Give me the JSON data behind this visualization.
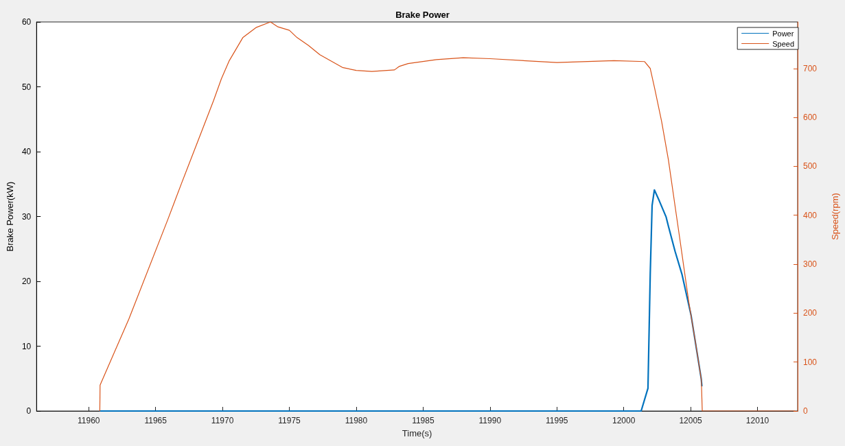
{
  "chart_data": {
    "type": "line",
    "title": "Brake Power",
    "xlabel": "Time(s)",
    "ylabel": "Brake Power(kW)",
    "y2label": "Speed(rpm)",
    "xlim": [
      11956.1,
      12013
    ],
    "xticks": [
      11960,
      11965,
      11970,
      11975,
      11980,
      11985,
      11990,
      11995,
      12000,
      12005,
      12010
    ],
    "ylim": [
      0,
      60
    ],
    "yticks": [
      0,
      10,
      20,
      30,
      40,
      50,
      60
    ],
    "y2lim": [
      0,
      795
    ],
    "y2ticks": [
      0,
      100,
      200,
      300,
      400,
      500,
      600,
      700
    ],
    "legend": "top right",
    "marker": "none",
    "series": [
      {
        "name": "Power",
        "color": "#0072bd",
        "x": [
          11960.85,
          12001.3,
          12001.81,
          12001.98,
          12002.12,
          12002.29,
          12002.66,
          12003.17,
          12003.34,
          12003.84,
          12004.35,
          12005.03,
          12005.79,
          12005.84
        ],
        "values": [
          0,
          0,
          3.5,
          21.1,
          31.7,
          34.1,
          32.4,
          29.9,
          28.5,
          24.6,
          21.1,
          14.8,
          5.0,
          3.9
        ]
      },
      {
        "name": "Speed",
        "color": "#d95319",
        "axis": "y2",
        "x": [
          11960.83,
          11960.85,
          11963.0,
          11965.91,
          11966.95,
          11968.14,
          11969.33,
          11969.92,
          11970.51,
          11971.52,
          11972.54,
          11973.59,
          11974.15,
          11975.0,
          11975.58,
          11976.43,
          11977.28,
          11978.97,
          11980.0,
          11981.17,
          11982.86,
          11983.2,
          11983.88,
          11986.0,
          11988.0,
          11990.0,
          11995.0,
          11999.27,
          12001.56,
          12001.98,
          12002.32,
          12002.83,
          12003.34,
          12003.93,
          12004.18,
          12004.86,
          12005.37,
          12005.8,
          12005.87,
          12012.8
        ],
        "values": [
          0,
          53,
          188,
          391,
          466,
          550,
          634,
          679,
          716,
          763,
          784,
          795,
          785,
          778,
          763,
          747,
          728,
          702,
          696,
          694,
          697,
          704,
          710,
          718,
          722,
          720,
          712,
          716,
          714,
          700,
          658,
          592,
          513,
          401,
          354,
          223,
          139,
          64,
          0,
          0
        ]
      }
    ]
  }
}
